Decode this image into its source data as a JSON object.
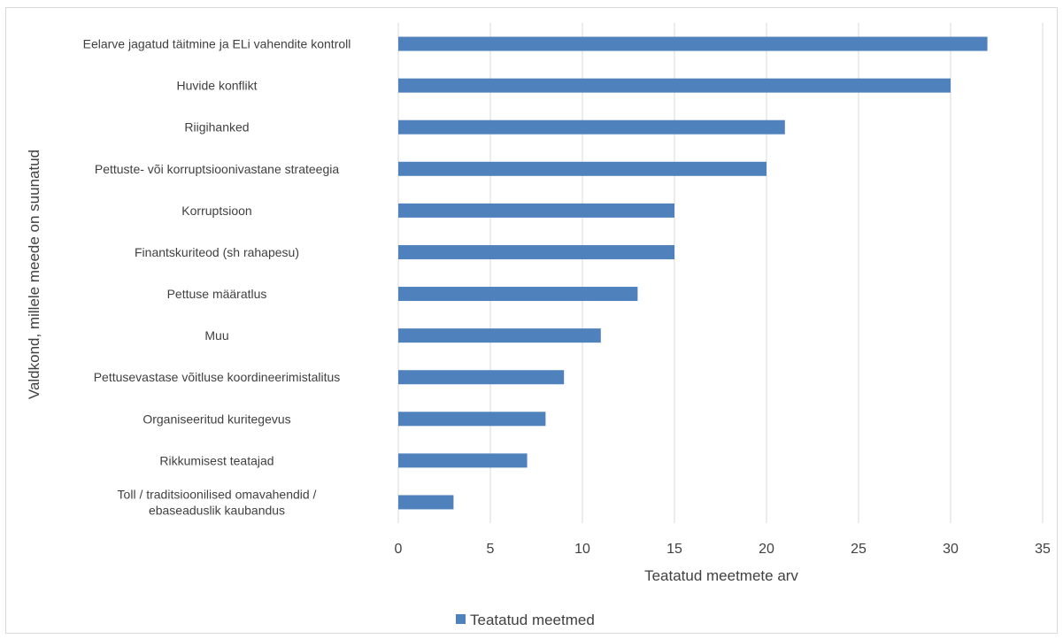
{
  "chart_data": {
    "type": "bar",
    "orientation": "horizontal",
    "title": "",
    "xlabel": "Teatatud meetmete arv",
    "ylabel": "Valdkond, millele meede on suunatud",
    "xlim": [
      0,
      35
    ],
    "xticks": [
      0,
      5,
      10,
      15,
      20,
      25,
      30,
      35
    ],
    "grid": true,
    "legend_position": "bottom",
    "categories": [
      [
        "Eelarve jagatud täitmine ja ELi vahendite kontroll"
      ],
      [
        "Huvide konflikt"
      ],
      [
        "Riigihanked"
      ],
      [
        "Pettuste- või korruptsioonivastane strateegia"
      ],
      [
        "Korruptsioon"
      ],
      [
        "Finantskuriteod (sh rahapesu)"
      ],
      [
        "Pettuse määratlus"
      ],
      [
        "Muu"
      ],
      [
        "Pettusevastase võitluse koordineerimistalitus"
      ],
      [
        "Organiseeritud kuritegevus"
      ],
      [
        "Rikkumisest teatajad"
      ],
      [
        "Toll / traditsioonilised omavahendid /",
        "ebaseaduslik kaubandus"
      ]
    ],
    "series": [
      {
        "name": "Teatatud meetmed",
        "color": "#4f81bd",
        "values": [
          32,
          30,
          21,
          20,
          15,
          15,
          13,
          11,
          9,
          8,
          7,
          3
        ]
      }
    ]
  }
}
